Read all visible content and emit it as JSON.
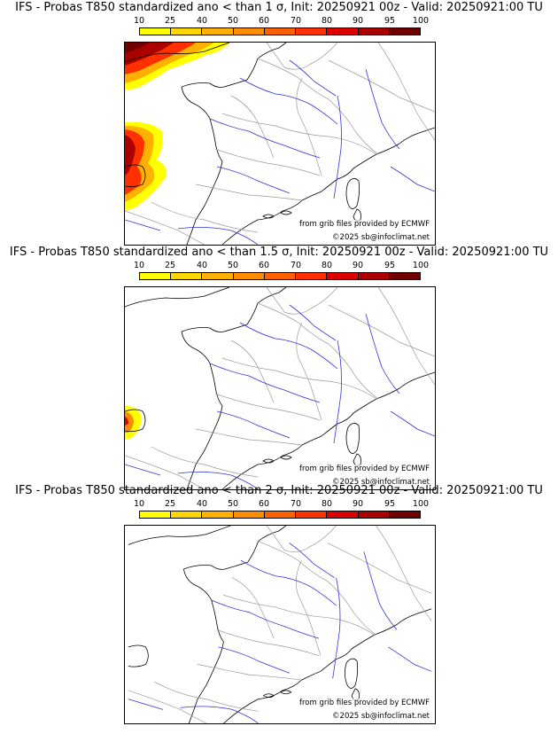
{
  "colorbar": {
    "labels": [
      "10",
      "25",
      "40",
      "50",
      "60",
      "70",
      "80",
      "90",
      "95",
      "100"
    ],
    "colors": [
      "#ffff00",
      "#ffd700",
      "#ffb000",
      "#ff8c00",
      "#ff6000",
      "#ff3000",
      "#dd0000",
      "#aa0000",
      "#700000"
    ]
  },
  "colors": {
    "coast": "#000000",
    "borders": "#9a9a9a",
    "rivers": "#3030e0",
    "probability_low": "#ffff00",
    "probability_high": "#700000"
  },
  "panels": [
    {
      "title": "IFS - Probas T850  standardized ano < than 1 σ, Init: 20250921 00z - Valid: 20250921:00 TU",
      "credit_source": "from grib files provided by ECMWF",
      "credit_copyright": "©2025 sb@infoclimat.net",
      "shaded_areas": [
        "northwest corner near Brittany and Cornwall",
        "western edge near Bay of Biscay and Iberian coast"
      ]
    },
    {
      "title": "IFS - Probas T850  standardized ano < than 1.5 σ, Init: 20250921 00z - Valid: 20250921:00 TU",
      "credit_source": "from grib files provided by ECMWF",
      "credit_copyright": "©2025 sb@infoclimat.net",
      "shaded_areas": [
        "small area on western edge near Iberian coast"
      ]
    },
    {
      "title": "IFS - Probas T850  standardized ano < than 2 σ, Init: 20250921 00z - Valid: 20250921:00 TU",
      "credit_source": "from grib files provided by ECMWF",
      "credit_copyright": "©2025 sb@infoclimat.net",
      "shaded_areas": []
    }
  ]
}
